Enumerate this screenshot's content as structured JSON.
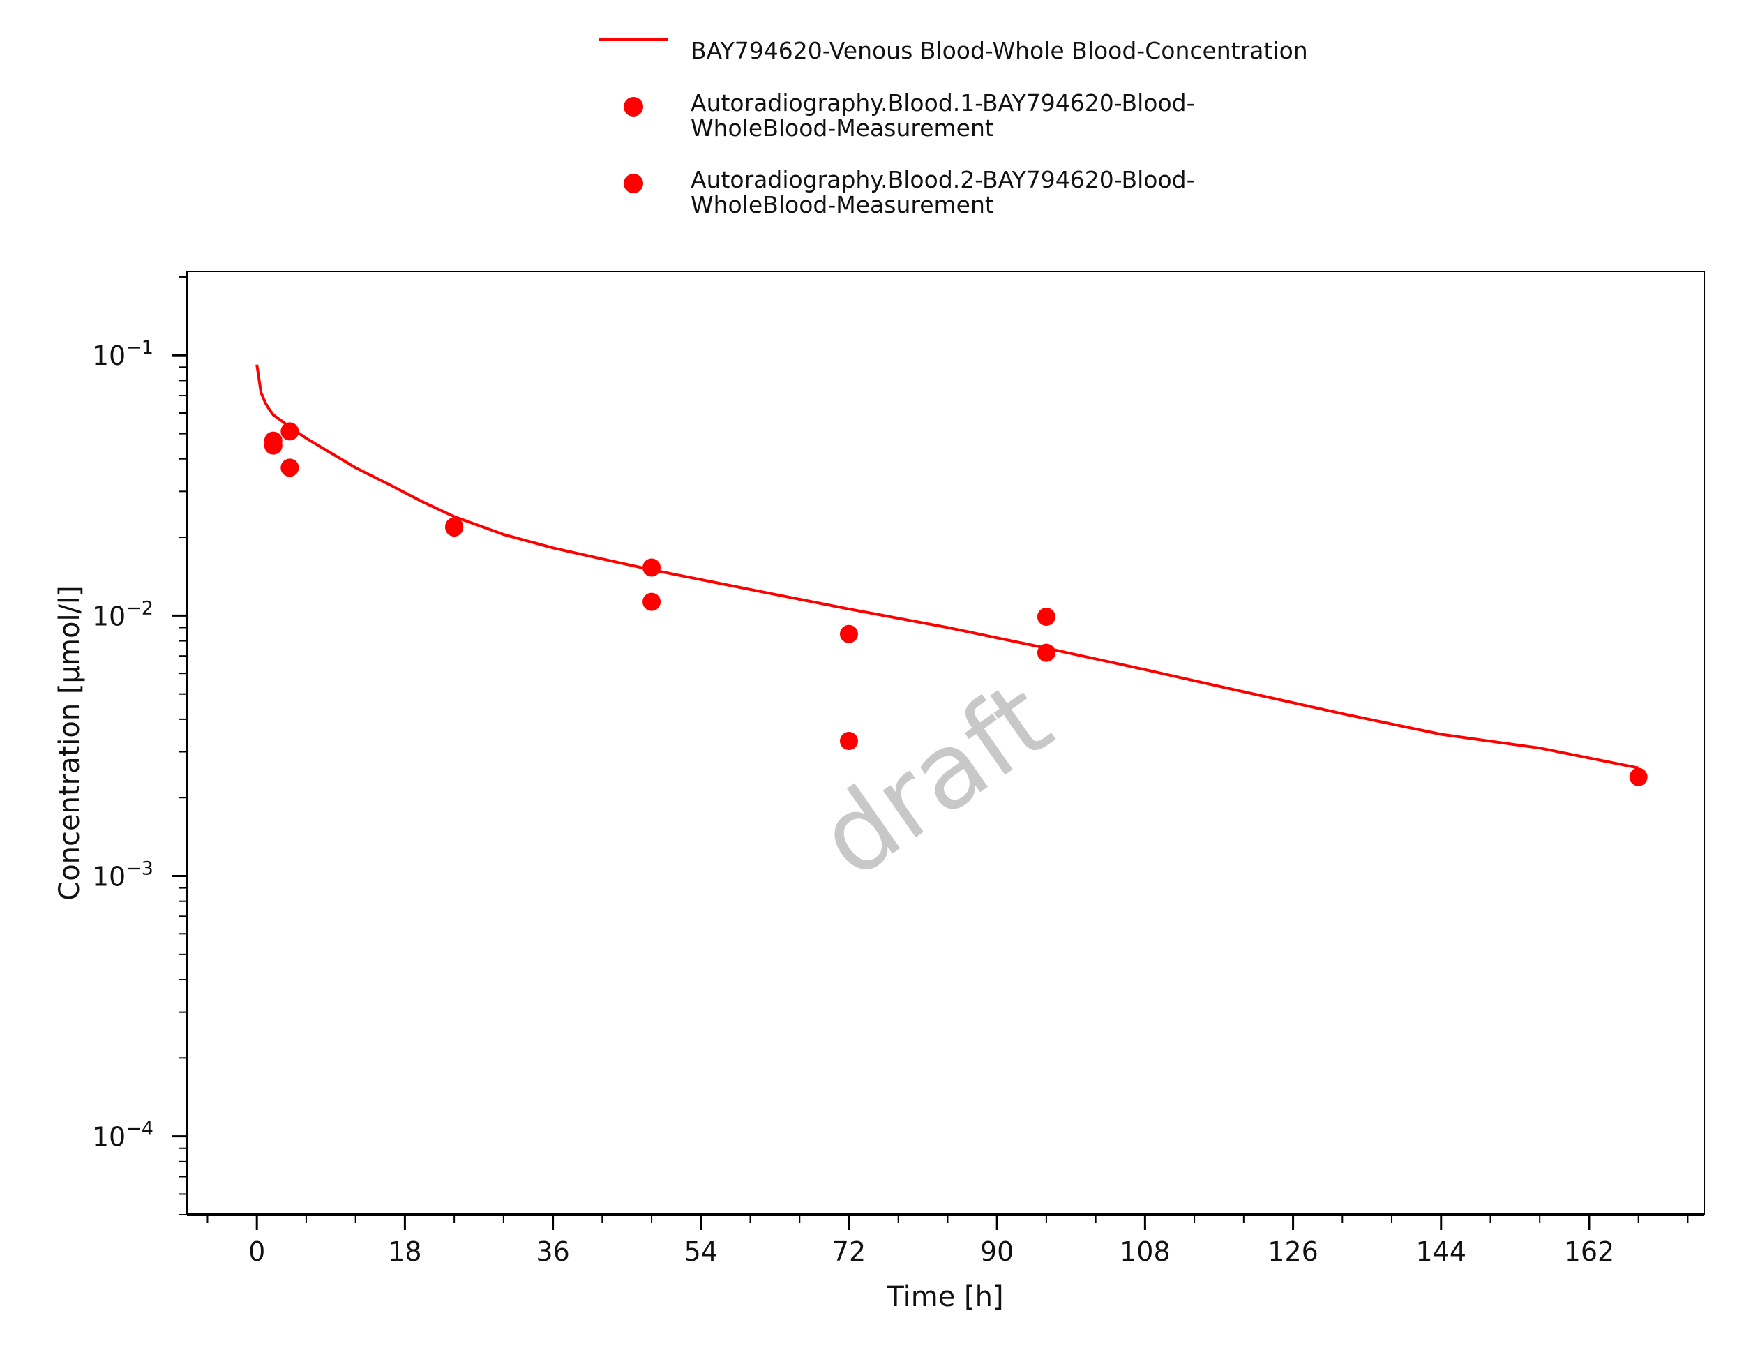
{
  "chart_data": {
    "type": "scatter",
    "xlabel": "Time [h]",
    "ylabel": "Concentration [µmol/l]",
    "xlim": [
      -8.5,
      176
    ],
    "ylim": [
      5e-05,
      0.21
    ],
    "y_scale": "log",
    "x_ticks": [
      0,
      18,
      36,
      54,
      72,
      90,
      108,
      126,
      144,
      162
    ],
    "x_tick_labels": [
      "0",
      "18",
      "36",
      "54",
      "72",
      "90",
      "108",
      "126",
      "144",
      "162"
    ],
    "y_ticks": [
      {
        "value": 0.1,
        "base": "10",
        "exp": "−1"
      },
      {
        "value": 0.01,
        "base": "10",
        "exp": "−2"
      },
      {
        "value": 0.001,
        "base": "10",
        "exp": "−3"
      },
      {
        "value": 0.0001,
        "base": "10",
        "exp": "−4"
      }
    ],
    "watermark": "draft",
    "legend_position": "top",
    "series": [
      {
        "name": "BAY794620-Venous Blood-Whole Blood-Concentration",
        "kind": "line",
        "color": "#ff0000",
        "x": [
          0,
          0.5,
          1,
          1.5,
          2,
          3,
          4,
          6,
          8,
          12,
          16,
          20,
          24,
          30,
          36,
          42,
          48,
          60,
          72,
          84,
          96,
          108,
          120,
          132,
          144,
          156,
          168
        ],
        "y": [
          0.092,
          0.072,
          0.066,
          0.062,
          0.059,
          0.056,
          0.053,
          0.048,
          0.044,
          0.037,
          0.032,
          0.0275,
          0.024,
          0.0205,
          0.0182,
          0.0165,
          0.015,
          0.0126,
          0.0106,
          0.009,
          0.0075,
          0.0062,
          0.0051,
          0.0042,
          0.0035,
          0.0031,
          0.0026
        ]
      },
      {
        "name": "Autoradiography.Blood.1-BAY794620-Blood-WholeBlood-Measurement",
        "kind": "scatter",
        "color": "#ff0000",
        "x": [
          2,
          4,
          24,
          48,
          72,
          96,
          168
        ],
        "y": [
          0.047,
          0.051,
          0.022,
          0.0153,
          0.0085,
          0.0099,
          0.0024
        ]
      },
      {
        "name": "Autoradiography.Blood.2-BAY794620-Blood-WholeBlood-Measurement",
        "kind": "scatter",
        "color": "#ff0000",
        "x": [
          2,
          4,
          24,
          48,
          72,
          96
        ],
        "y": [
          0.045,
          0.037,
          0.0218,
          0.0113,
          0.0033,
          0.0072
        ]
      }
    ]
  }
}
